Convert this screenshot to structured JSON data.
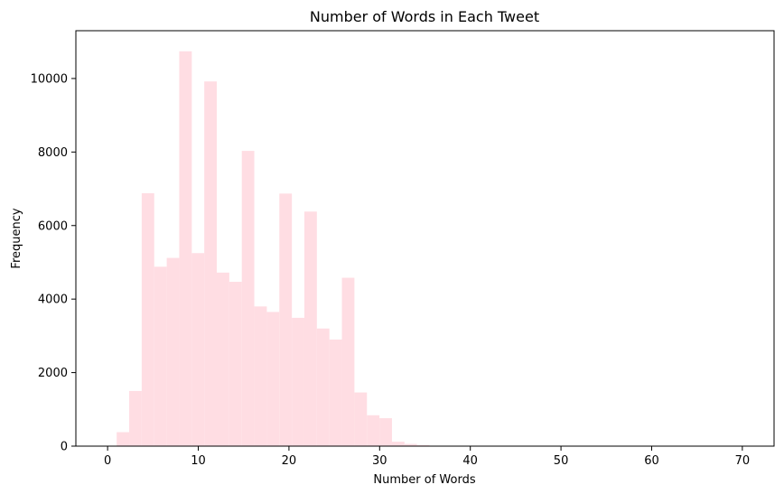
{
  "chart_data": {
    "type": "bar",
    "title": "Number of Words in Each Tweet",
    "xlabel": "Number of Words",
    "ylabel": "Frequency",
    "bar_color": "#ffdde3",
    "xlim": [
      -3.5,
      73.5
    ],
    "ylim": [
      0,
      11300
    ],
    "x_ticks": [
      0,
      10,
      20,
      30,
      40,
      50,
      60,
      70
    ],
    "y_ticks": [
      0,
      2000,
      4000,
      6000,
      8000,
      10000
    ],
    "grid": false,
    "bin_edges": [
      1.0,
      2.38,
      3.76,
      5.14,
      6.52,
      7.9,
      9.28,
      10.66,
      12.04,
      13.42,
      14.8,
      16.18,
      17.56,
      18.94,
      20.32,
      21.7,
      23.08,
      24.46,
      25.84,
      27.22,
      28.6,
      29.98,
      31.36,
      32.74,
      34.12,
      35.5,
      36.88,
      38.26,
      39.64,
      41.02,
      42.4,
      43.78,
      45.16,
      46.54,
      47.92,
      49.3,
      50.68,
      52.06,
      53.44,
      54.82,
      56.2,
      57.58,
      58.96,
      60.34,
      61.72,
      63.1,
      64.48,
      65.86,
      67.24,
      68.62,
      70.0
    ],
    "counts": [
      380,
      1500,
      6880,
      4880,
      5120,
      10740,
      5250,
      9920,
      4720,
      4470,
      8030,
      3800,
      3650,
      6870,
      3490,
      6380,
      3200,
      2900,
      4580,
      1460,
      840,
      760,
      120,
      60,
      25,
      12,
      8,
      5,
      4,
      3,
      2,
      2,
      1,
      1,
      1,
      1,
      1,
      1,
      1,
      1,
      1,
      1,
      1,
      1,
      1,
      1,
      1,
      1,
      1,
      1
    ]
  }
}
